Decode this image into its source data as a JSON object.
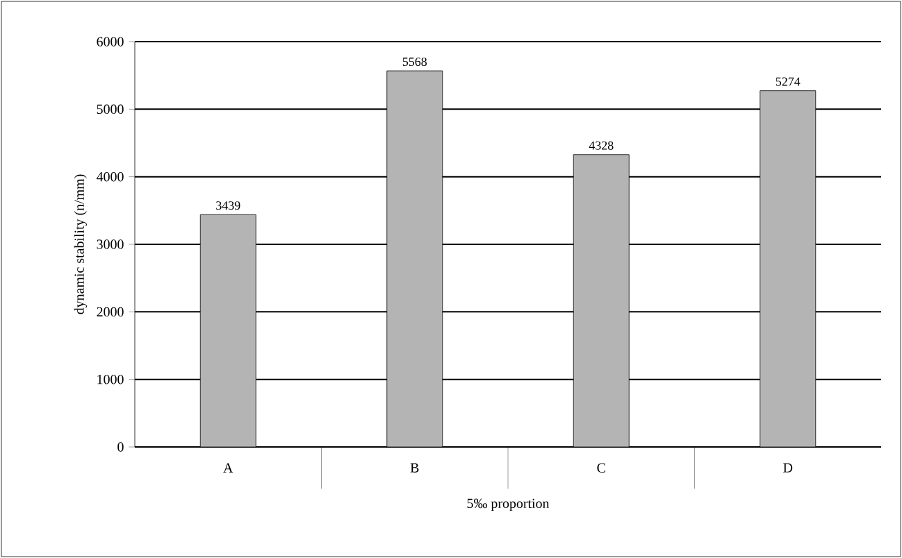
{
  "chart_data": {
    "type": "bar",
    "xlabel": "5‰ proportion",
    "ylabel": "dynamic stability (n/mm)",
    "categories": [
      "A",
      "B",
      "C",
      "D"
    ],
    "values": [
      3439,
      5568,
      4328,
      5274
    ],
    "color": "#b4b4b4",
    "ylim": [
      0,
      6000
    ],
    "yticks": [
      0,
      1000,
      2000,
      3000,
      4000,
      5000,
      6000
    ],
    "grid": "y",
    "data_labels": true
  }
}
